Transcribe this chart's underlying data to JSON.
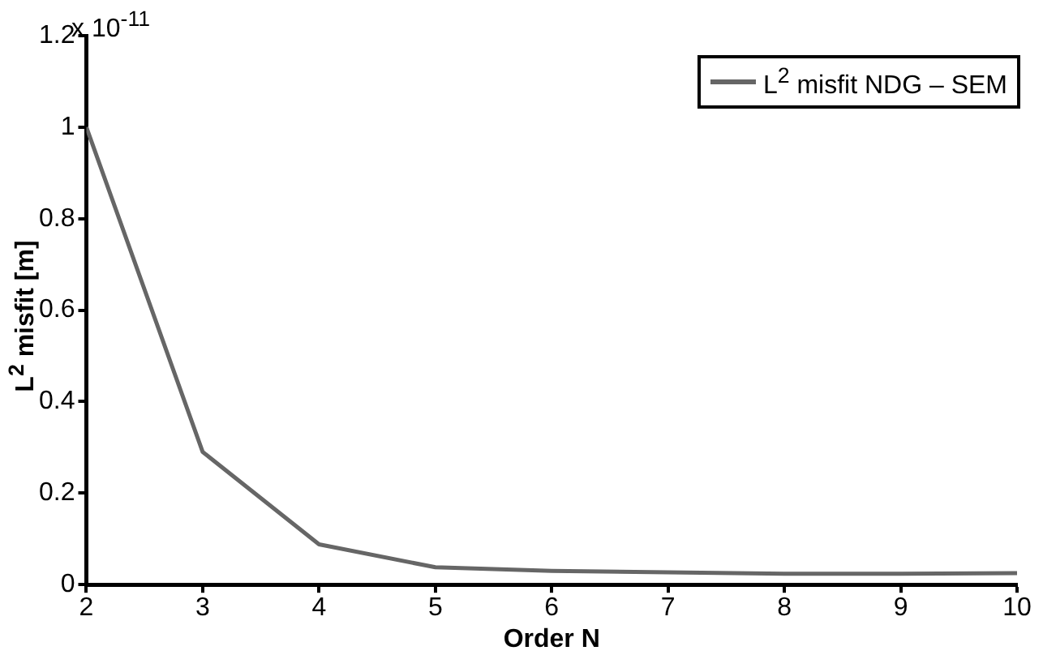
{
  "chart_data": {
    "type": "line",
    "xlabel": "Order N",
    "ylabel": "L$^{2}$ misfit [m]",
    "annotations": [
      "x 10$^{-11}$"
    ],
    "x": [
      2,
      3,
      4,
      5,
      6,
      7,
      8,
      9,
      10
    ],
    "series": [
      {
        "name": "L$^{2}$ misfit NDG – SEM",
        "color": "#666666",
        "values": [
          1.0,
          0.29,
          0.088,
          0.038,
          0.03,
          0.027,
          0.024,
          0.024,
          0.025
        ]
      }
    ],
    "xlim": [
      2,
      10
    ],
    "xticks": [
      2,
      3,
      4,
      5,
      6,
      7,
      8,
      9,
      10
    ],
    "ylim": [
      0,
      1.2
    ],
    "yticks": [
      0,
      0.2,
      0.4,
      0.6,
      0.8,
      1,
      1.2
    ],
    "grid": false,
    "legend": "top right",
    "marker": "none",
    "line_style": "solid"
  }
}
